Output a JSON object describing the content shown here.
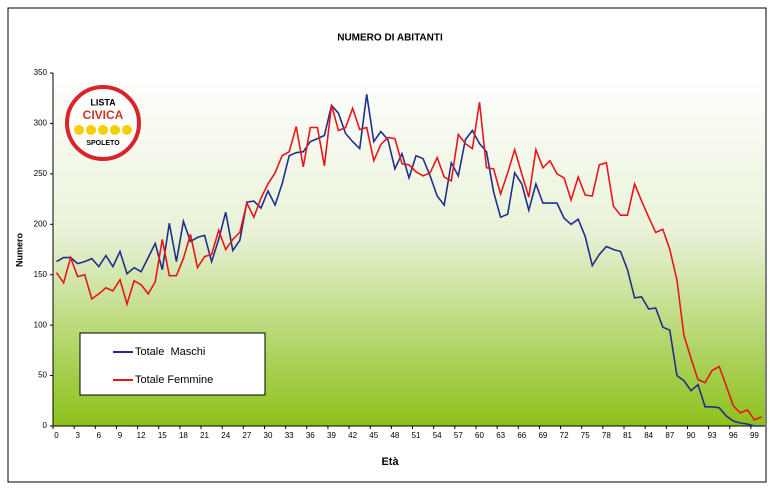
{
  "chart_data": {
    "type": "line",
    "title": "NUMERO DI ABITANTI",
    "x_label": "Età",
    "y_label": "Numero",
    "categories": [
      0,
      null,
      null,
      3,
      null,
      null,
      6,
      null,
      null,
      9,
      null,
      null,
      12,
      null,
      null,
      15,
      null,
      null,
      18,
      null,
      null,
      21,
      null,
      null,
      24,
      null,
      null,
      27,
      null,
      null,
      30,
      null,
      null,
      33,
      null,
      null,
      36,
      null,
      null,
      39,
      null,
      null,
      42,
      null,
      null,
      45,
      null,
      null,
      48,
      null,
      null,
      51,
      null,
      null,
      54,
      null,
      null,
      57,
      null,
      null,
      60,
      null,
      null,
      63,
      null,
      null,
      66,
      null,
      null,
      69,
      null,
      null,
      72,
      null,
      null,
      75,
      null,
      null,
      78,
      null,
      null,
      81,
      null,
      null,
      84,
      null,
      null,
      87,
      null,
      null,
      90,
      null,
      null,
      93,
      null,
      null,
      96,
      null,
      null,
      99,
      null
    ],
    "series": [
      {
        "name": "Totale  Maschi",
        "color": "#1f2f8f",
        "values": [
          163,
          167,
          167,
          161,
          163,
          166,
          158,
          169,
          158,
          173,
          151,
          157,
          153,
          167,
          181,
          155,
          201,
          163,
          203,
          183,
          187,
          189,
          163,
          185,
          212,
          174,
          184,
          222,
          223,
          216,
          233,
          219,
          240,
          268,
          271,
          272,
          282,
          285,
          288,
          318,
          310,
          290,
          282,
          275,
          329,
          282,
          292,
          284,
          255,
          270,
          246,
          268,
          265,
          248,
          228,
          219,
          261,
          248,
          284,
          293,
          280,
          272,
          232,
          207,
          210,
          251,
          240,
          214,
          240,
          221,
          221,
          221,
          206,
          200,
          205,
          188,
          159,
          170,
          178,
          175,
          173,
          155,
          127,
          128,
          116,
          117,
          98,
          95,
          50,
          45,
          35,
          41,
          19,
          19,
          18,
          10,
          5,
          3,
          2,
          0,
          0
        ]
      },
      {
        "name": "Totale Femmine",
        "color": "#e8161b",
        "values": [
          152,
          142,
          167,
          148,
          150,
          126,
          131,
          137,
          134,
          145,
          121,
          144,
          140,
          131,
          143,
          185,
          149,
          149,
          166,
          190,
          157,
          168,
          170,
          194,
          175,
          185,
          192,
          221,
          207,
          226,
          240,
          251,
          268,
          272,
          297,
          257,
          296,
          296,
          258,
          318,
          293,
          296,
          315,
          294,
          296,
          263,
          279,
          286,
          285,
          260,
          259,
          252,
          248,
          251,
          266,
          247,
          243,
          289,
          280,
          275,
          321,
          256,
          255,
          230,
          251,
          274,
          250,
          227,
          274,
          256,
          263,
          250,
          246,
          224,
          247,
          229,
          228,
          259,
          261,
          218,
          209,
          209,
          240,
          223,
          207,
          192,
          195,
          175,
          145,
          90,
          67,
          46,
          43,
          55,
          59,
          40,
          20,
          13,
          16,
          6,
          9
        ]
      }
    ],
    "ylim": [
      0,
      350
    ],
    "yticks": [
      0,
      50,
      100,
      150,
      200,
      250,
      300,
      350
    ]
  },
  "logo": {
    "top": "LISTA",
    "middle": "CIVICA",
    "bottom": "SPOLETO"
  }
}
